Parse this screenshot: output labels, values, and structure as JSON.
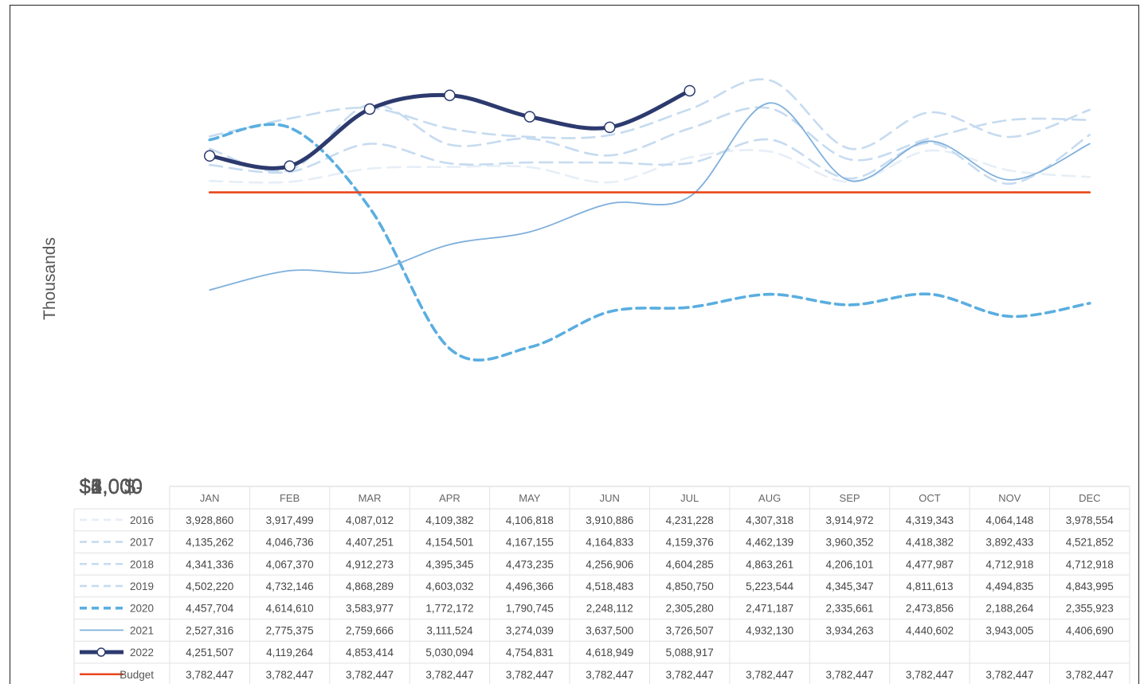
{
  "chart_data": {
    "type": "line",
    "title": "",
    "xlabel": "",
    "ylabel": "Thousands",
    "ylim": [
      0,
      6000
    ],
    "y_ticks": [
      {
        "value": 0,
        "label": "$-"
      },
      {
        "value": 1000,
        "label": "$1,000"
      },
      {
        "value": 2000,
        "label": "$2,000"
      },
      {
        "value": 3000,
        "label": "$3,000"
      },
      {
        "value": 4000,
        "label": "$4,000"
      },
      {
        "value": 5000,
        "label": "$5,000"
      },
      {
        "value": 6000,
        "label": "$6,000"
      }
    ],
    "grid": true,
    "legend": "data table below chart",
    "categories": [
      "JAN",
      "FEB",
      "MAR",
      "APR",
      "MAY",
      "JUN",
      "JUL",
      "AUG",
      "SEP",
      "OCT",
      "NOV",
      "DEC"
    ],
    "series": [
      {
        "name": "2016",
        "style": "dash",
        "color": "#e6eef7",
        "values": [
          3928860,
          3917499,
          4087012,
          4109382,
          4106818,
          3910886,
          4231228,
          4307318,
          3914972,
          4319343,
          4064148,
          3978554
        ],
        "labels": [
          "3,928,860",
          "3,917,499",
          "4,087,012",
          "4,109,382",
          "4,106,818",
          "3,910,886",
          "4,231,228",
          "4,307,318",
          "3,914,972",
          "4,319,343",
          "4,064,148",
          "3,978,554"
        ]
      },
      {
        "name": "2017",
        "style": "dash",
        "color": "#c6dbf0",
        "values": [
          4135262,
          4046736,
          4407251,
          4154501,
          4167155,
          4164833,
          4159376,
          4462139,
          3960352,
          4418382,
          3892433,
          4521852
        ],
        "labels": [
          "4,135,262",
          "4,046,736",
          "4,407,251",
          "4,154,501",
          "4,167,155",
          "4,164,833",
          "4,159,376",
          "4,462,139",
          "3,960,352",
          "4,418,382",
          "3,892,433",
          "4,521,852"
        ]
      },
      {
        "name": "2018",
        "style": "dash",
        "color": "#c6dbf0",
        "values": [
          4341336,
          4067370,
          4912273,
          4395345,
          4473235,
          4256906,
          4604285,
          4863261,
          4206101,
          4477987,
          4712918,
          4712918
        ],
        "labels": [
          "4,341,336",
          "4,067,370",
          "4,912,273",
          "4,395,345",
          "4,473,235",
          "4,256,906",
          "4,604,285",
          "4,863,261",
          "4,206,101",
          "4,477,987",
          "4,712,918",
          "4,712,918"
        ]
      },
      {
        "name": "2019",
        "style": "dash",
        "color": "#c6dbf0",
        "values": [
          4502220,
          4732146,
          4868289,
          4603032,
          4496366,
          4518483,
          4850750,
          5223544,
          4345347,
          4811613,
          4494835,
          4843995
        ],
        "labels": [
          "4,502,220",
          "4,732,146",
          "4,868,289",
          "4,603,032",
          "4,496,366",
          "4,518,483",
          "4,850,750",
          "5,223,544",
          "4,345,347",
          "4,811,613",
          "4,494,835",
          "4,843,995"
        ]
      },
      {
        "name": "2020",
        "style": "bold-dash",
        "color": "#5aaee0",
        "values": [
          4457704,
          4614610,
          3583977,
          1772172,
          1790745,
          2248112,
          2305280,
          2471187,
          2335661,
          2473856,
          2188264,
          2355923
        ],
        "labels": [
          "4,457,704",
          "4,614,610",
          "3,583,977",
          "1,772,172",
          "1,790,745",
          "2,248,112",
          "2,305,280",
          "2,471,187",
          "2,335,661",
          "2,473,856",
          "2,188,264",
          "2,355,923"
        ]
      },
      {
        "name": "2021",
        "style": "solid",
        "color": "#7fb0dc",
        "values": [
          2527316,
          2775375,
          2759666,
          3111524,
          3274039,
          3637500,
          3726507,
          4932130,
          3934263,
          4440602,
          3943005,
          4406690
        ],
        "labels": [
          "2,527,316",
          "2,775,375",
          "2,759,666",
          "3,111,524",
          "3,274,039",
          "3,637,500",
          "3,726,507",
          "4,932,130",
          "3,934,263",
          "4,440,602",
          "3,943,005",
          "4,406,690"
        ]
      },
      {
        "name": "2022",
        "style": "bold-marker",
        "color": "#2c3a6e",
        "values": [
          4251507,
          4119264,
          4853414,
          5030094,
          4754831,
          4618949,
          5088917,
          null,
          null,
          null,
          null,
          null
        ],
        "labels": [
          "4,251,507",
          "4,119,264",
          "4,853,414",
          "5,030,094",
          "4,754,831",
          "4,618,949",
          "5,088,917",
          "",
          "",
          "",
          "",
          ""
        ]
      },
      {
        "name": "Budget",
        "style": "solid",
        "color": "#e8461c",
        "values": [
          3782447,
          3782447,
          3782447,
          3782447,
          3782447,
          3782447,
          3782447,
          3782447,
          3782447,
          3782447,
          3782447,
          3782447
        ],
        "labels": [
          "3,782,447",
          "3,782,447",
          "3,782,447",
          "3,782,447",
          "3,782,447",
          "3,782,447",
          "3,782,447",
          "3,782,447",
          "3,782,447",
          "3,782,447",
          "3,782,447",
          "3,782,447"
        ]
      }
    ]
  }
}
